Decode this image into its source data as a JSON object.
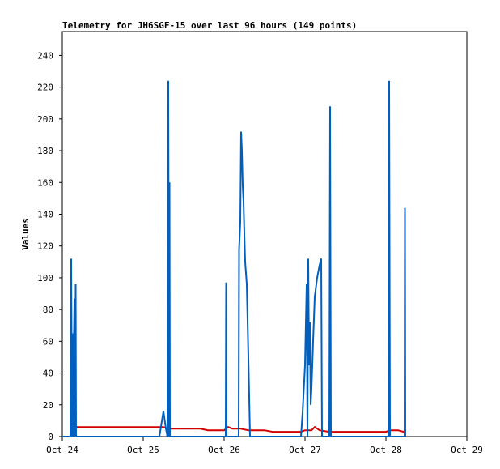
{
  "chart_data": {
    "type": "line",
    "title": "Telemetry for JH6SGF-15 over last 96 hours (149 points)",
    "xlabel": "",
    "ylabel": "Values",
    "xlim": [
      0,
      5
    ],
    "ylim": [
      0,
      255
    ],
    "x_ticks": [
      {
        "value": 0,
        "label": "Oct 24"
      },
      {
        "value": 1,
        "label": "Oct 25"
      },
      {
        "value": 2,
        "label": "Oct 26"
      },
      {
        "value": 3,
        "label": "Oct 27"
      },
      {
        "value": 4,
        "label": "Oct 28"
      },
      {
        "value": 5,
        "label": "Oct 29"
      }
    ],
    "y_ticks": [
      0,
      20,
      40,
      60,
      80,
      100,
      120,
      140,
      160,
      180,
      200,
      220,
      240
    ],
    "grid": false,
    "legend": "none",
    "x_unit": "days since Oct 24 00:00",
    "series": [
      {
        "color": "#d40000",
        "points": [
          [
            0.12,
            9
          ],
          [
            0.13,
            8
          ],
          [
            0.16,
            6
          ],
          [
            0.5,
            6
          ],
          [
            1.0,
            6
          ],
          [
            1.25,
            6
          ],
          [
            1.3,
            5
          ],
          [
            1.5,
            5
          ],
          [
            1.7,
            5
          ],
          [
            1.8,
            4
          ],
          [
            2.0,
            4
          ],
          [
            2.05,
            6
          ],
          [
            2.1,
            5
          ],
          [
            2.2,
            5
          ],
          [
            2.3,
            4
          ],
          [
            2.5,
            4
          ],
          [
            2.6,
            3
          ],
          [
            2.8,
            3
          ],
          [
            2.95,
            3
          ],
          [
            3.0,
            4
          ],
          [
            3.08,
            4
          ],
          [
            3.12,
            6
          ],
          [
            3.18,
            4
          ],
          [
            3.3,
            3
          ],
          [
            3.5,
            3
          ],
          [
            3.8,
            3
          ],
          [
            4.0,
            3
          ],
          [
            4.05,
            4
          ],
          [
            4.15,
            4
          ],
          [
            4.22,
            3
          ],
          [
            4.24,
            3
          ]
        ]
      },
      {
        "color": "#0060c0",
        "points": [
          [
            0.0,
            0
          ],
          [
            0.1,
            0
          ],
          [
            0.11,
            112
          ],
          [
            0.12,
            0
          ],
          [
            0.125,
            65
          ],
          [
            0.13,
            0
          ],
          [
            0.14,
            48
          ],
          [
            0.15,
            87
          ],
          [
            0.16,
            0
          ],
          [
            0.165,
            96
          ],
          [
            0.17,
            0
          ],
          [
            1.0,
            0
          ],
          [
            1.2,
            0
          ],
          [
            1.25,
            16
          ],
          [
            1.28,
            5
          ],
          [
            1.3,
            0
          ],
          [
            1.31,
            224
          ],
          [
            1.32,
            0
          ],
          [
            1.325,
            160
          ],
          [
            1.33,
            0
          ],
          [
            1.6,
            0
          ],
          [
            2.0,
            0
          ],
          [
            2.02,
            0
          ],
          [
            2.025,
            97
          ],
          [
            2.03,
            0
          ],
          [
            2.18,
            0
          ],
          [
            2.185,
            118
          ],
          [
            2.2,
            135
          ],
          [
            2.21,
            192
          ],
          [
            2.22,
            180
          ],
          [
            2.23,
            158
          ],
          [
            2.24,
            148
          ],
          [
            2.25,
            128
          ],
          [
            2.26,
            110
          ],
          [
            2.28,
            96
          ],
          [
            2.3,
            50
          ],
          [
            2.32,
            0
          ],
          [
            2.6,
            0
          ],
          [
            2.95,
            0
          ],
          [
            2.97,
            15
          ],
          [
            3.0,
            45
          ],
          [
            3.02,
            96
          ],
          [
            3.03,
            0
          ],
          [
            3.04,
            112
          ],
          [
            3.05,
            45
          ],
          [
            3.06,
            72
          ],
          [
            3.07,
            20
          ],
          [
            3.08,
            30
          ],
          [
            3.1,
            60
          ],
          [
            3.12,
            88
          ],
          [
            3.15,
            100
          ],
          [
            3.18,
            108
          ],
          [
            3.2,
            112
          ],
          [
            3.21,
            0
          ],
          [
            3.3,
            0
          ],
          [
            3.31,
            208
          ],
          [
            3.32,
            0
          ],
          [
            3.5,
            0
          ],
          [
            4.0,
            0
          ],
          [
            4.03,
            0
          ],
          [
            4.035,
            88
          ],
          [
            4.04,
            224
          ],
          [
            4.05,
            0
          ],
          [
            4.1,
            0
          ],
          [
            4.23,
            0
          ],
          [
            4.235,
            144
          ],
          [
            4.24,
            0
          ]
        ]
      }
    ]
  }
}
